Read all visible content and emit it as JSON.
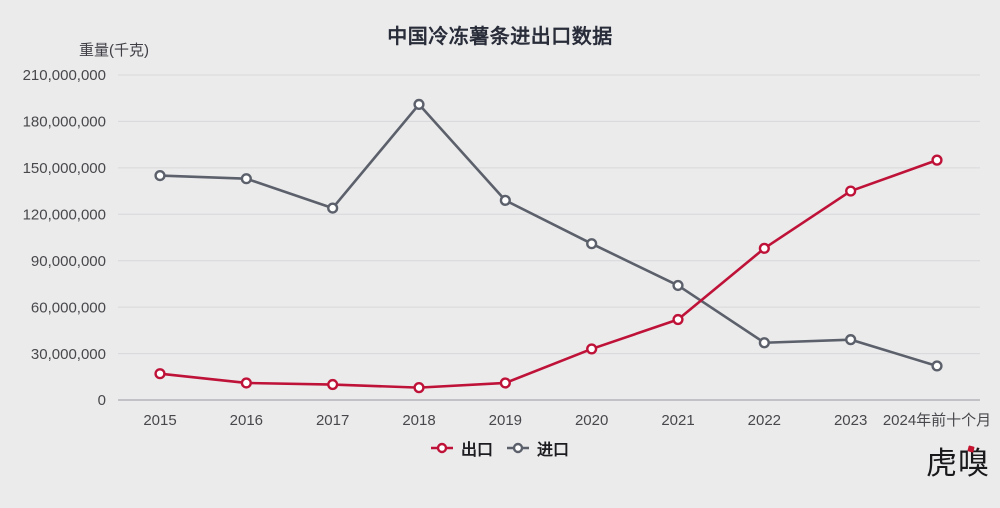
{
  "page": {
    "background_color": "#ebebec"
  },
  "chart_data": {
    "type": "line",
    "title": "中国冷冻薯条进出口数据",
    "ylabel": "重量(千克)",
    "xlabel": "",
    "categories": [
      "2015",
      "2016",
      "2017",
      "2018",
      "2019",
      "2020",
      "2021",
      "2022",
      "2023",
      "2024年前十个月"
    ],
    "series": [
      {
        "id": "export",
        "name": "出口",
        "color": "#bf1238",
        "values": [
          17000000,
          11000000,
          10000000,
          8000000,
          11000000,
          33000000,
          52000000,
          98000000,
          135000000,
          155000000
        ]
      },
      {
        "id": "import",
        "name": "进口",
        "color": "#5b606b",
        "values": [
          145000000,
          143000000,
          124000000,
          191000000,
          129000000,
          101000000,
          74000000,
          37000000,
          39000000,
          22000000
        ]
      }
    ],
    "ylim": [
      0,
      210000000
    ],
    "yticks": [
      0,
      30000000,
      60000000,
      90000000,
      120000000,
      150000000,
      180000000,
      210000000
    ],
    "grid": true,
    "legend_position": "bottom",
    "colors": {
      "grid_line": "#d8d8da",
      "axis_line": "#a9aaae",
      "tick_text": "#48484c",
      "marker_fill": "#ffffff"
    }
  },
  "footer": {
    "logo_text": "虎嗅"
  }
}
